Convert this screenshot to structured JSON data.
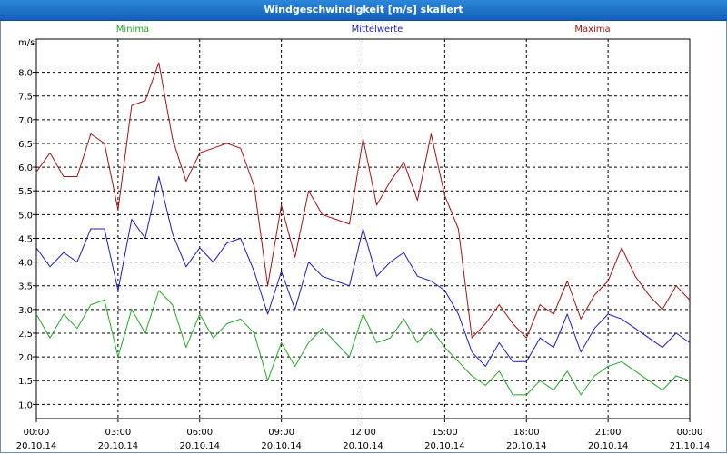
{
  "window": {
    "title": "Windgeschwindigkeit [m/s] skaliert"
  },
  "chart_data": {
    "type": "line",
    "title": "Windgeschwindigkeit [m/s] skaliert",
    "ylabel": "m/s",
    "ylim": [
      0.7,
      8.7
    ],
    "xlim": [
      0,
      24
    ],
    "grid": true,
    "y_ticks": [
      "1,0",
      "1,5",
      "2,0",
      "2,5",
      "3,0",
      "3,5",
      "4,0",
      "4,5",
      "5,0",
      "5,5",
      "6,0",
      "6,5",
      "7,0",
      "7,5",
      "8,0"
    ],
    "x_ticks": [
      {
        "time": "00:00",
        "date": "20.10.14"
      },
      {
        "time": "03:00",
        "date": "20.10.14"
      },
      {
        "time": "06:00",
        "date": "20.10.14"
      },
      {
        "time": "09:00",
        "date": "20.10.14"
      },
      {
        "time": "12:00",
        "date": "20.10.14"
      },
      {
        "time": "15:00",
        "date": "20.10.14"
      },
      {
        "time": "18:00",
        "date": "20.10.14"
      },
      {
        "time": "21:00",
        "date": "20.10.14"
      },
      {
        "time": "00:00",
        "date": "21.10.14"
      }
    ],
    "x_hours": [
      0,
      0.5,
      1,
      1.5,
      2,
      2.5,
      3,
      3.5,
      4,
      4.5,
      5,
      5.5,
      6,
      6.5,
      7,
      7.5,
      8,
      8.5,
      9,
      9.5,
      10,
      10.5,
      11,
      11.5,
      12,
      12.5,
      13,
      13.5,
      14,
      14.5,
      15,
      15.5,
      16,
      16.5,
      17,
      17.5,
      18,
      18.5,
      19,
      19.5,
      20,
      20.5,
      21,
      21.5,
      22,
      22.5,
      23,
      23.5,
      24
    ],
    "series": [
      {
        "name": "Minima",
        "color": "#22aa22",
        "values": [
          2.9,
          2.4,
          2.9,
          2.6,
          3.1,
          3.2,
          2.0,
          3.0,
          2.5,
          3.4,
          3.1,
          2.2,
          2.9,
          2.4,
          2.7,
          2.8,
          2.5,
          1.5,
          2.3,
          1.8,
          2.3,
          2.6,
          2.3,
          2.0,
          2.9,
          2.3,
          2.4,
          2.8,
          2.3,
          2.6,
          2.2,
          1.9,
          1.6,
          1.4,
          1.7,
          1.2,
          1.2,
          1.5,
          1.3,
          1.7,
          1.2,
          1.6,
          1.8,
          1.9,
          1.7,
          1.5,
          1.3,
          1.6,
          1.5
        ]
      },
      {
        "name": "Mittelwerte",
        "color": "#1a1acc",
        "values": [
          4.3,
          3.9,
          4.2,
          4.0,
          4.7,
          4.7,
          3.4,
          4.9,
          4.5,
          5.8,
          4.6,
          3.9,
          4.3,
          4.0,
          4.4,
          4.5,
          3.8,
          2.9,
          3.8,
          3.0,
          4.0,
          3.7,
          3.6,
          3.5,
          4.7,
          3.7,
          4.0,
          4.2,
          3.7,
          3.6,
          3.4,
          2.9,
          2.1,
          1.8,
          2.3,
          1.9,
          1.9,
          2.4,
          2.2,
          2.9,
          2.1,
          2.6,
          2.9,
          2.8,
          2.6,
          2.4,
          2.2,
          2.5,
          2.3
        ]
      },
      {
        "name": "Maxima",
        "color": "#aa1111",
        "values": [
          5.9,
          6.3,
          5.8,
          5.8,
          6.7,
          6.5,
          5.1,
          7.3,
          7.4,
          8.2,
          6.6,
          5.7,
          6.3,
          6.4,
          6.5,
          6.4,
          5.6,
          3.5,
          5.2,
          4.1,
          5.5,
          5.0,
          4.9,
          4.8,
          6.6,
          5.2,
          5.7,
          6.1,
          5.3,
          6.7,
          5.4,
          4.7,
          2.4,
          2.7,
          3.1,
          2.7,
          2.4,
          3.1,
          2.9,
          3.6,
          2.8,
          3.3,
          3.6,
          4.3,
          3.7,
          3.3,
          3.0,
          3.5,
          3.2
        ]
      }
    ]
  }
}
